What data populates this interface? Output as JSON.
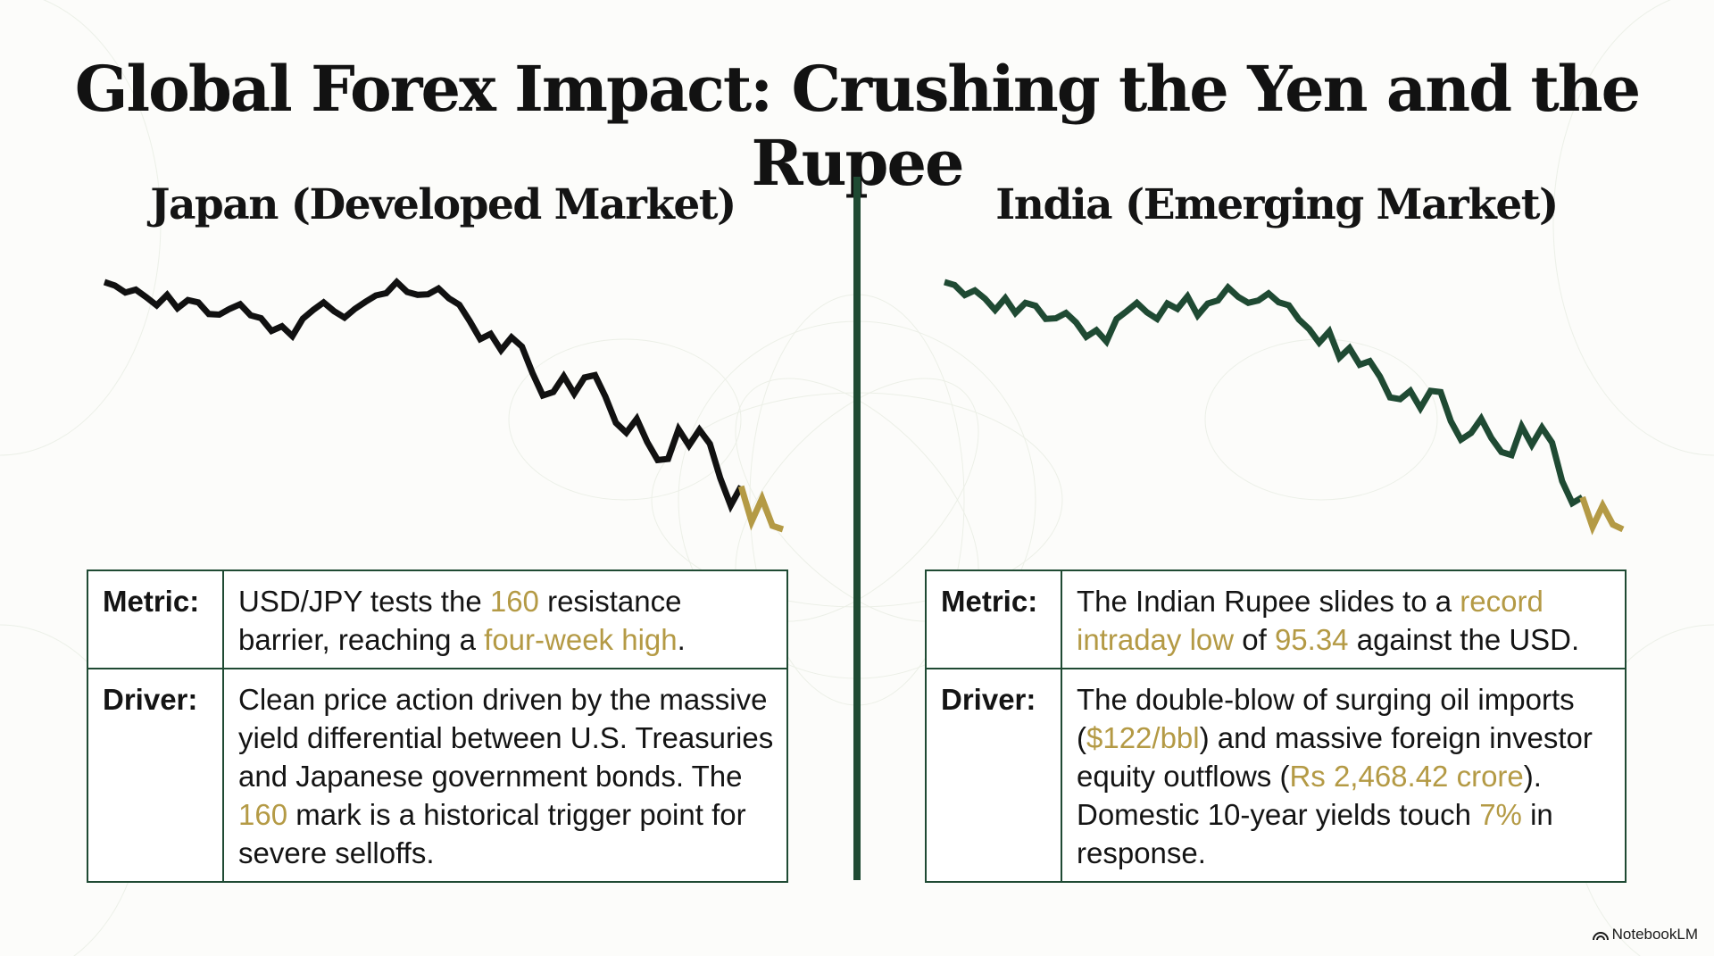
{
  "title": "Global Forex Impact: Crushing the Yen and the Rupee",
  "colors": {
    "japan_line": "#111111",
    "india_line": "#1f4a33",
    "highlight": "#b49a45",
    "accent_green": "#1f4a33"
  },
  "japan": {
    "title": "Japan (Developed Market)",
    "metric_label": "Metric:",
    "metric_parts": [
      "USD/JPY tests the ",
      "160",
      " resistance barrier, reaching a ",
      "four-week high",
      "."
    ],
    "driver_label": "Driver:",
    "driver_parts": [
      "Clean price action driven by the massive yield differential between U.S. Treasuries and Japanese government bonds. The ",
      "160",
      " mark is a historical trigger point for severe selloffs."
    ]
  },
  "india": {
    "title": "India (Emerging Market)",
    "metric_label": "Metric:",
    "metric_parts": [
      "The Indian Rupee slides to a ",
      "record intraday low",
      " of ",
      "95.34",
      " against the USD."
    ],
    "driver_label": "Driver:",
    "driver_parts": [
      "The double-blow of surging oil imports (",
      "$122/bbl",
      ") and massive foreign investor equity outflows (",
      "Rs 2,468.42 crore",
      "). Domestic 10-year yields touch ",
      "7%",
      " in response."
    ]
  },
  "chart_data": [
    {
      "type": "line",
      "title": "",
      "xlabel": "",
      "ylabel": "",
      "series": [
        {
          "values": [
            100,
            99.4,
            98.2,
            98.7,
            97.4,
            96,
            97.8,
            95.5,
            96.9,
            96.5,
            94.5,
            94.4,
            95.4,
            96.2,
            94.3,
            93.8,
            91.6,
            92.4,
            90.7,
            93.7,
            95.2,
            96.5,
            95,
            93.9,
            95.4,
            96.6,
            97.7,
            98.1,
            100,
            98.3,
            97.8,
            97.9,
            98.9,
            97.2,
            96.1,
            93.3,
            90.2,
            91.1,
            88.3,
            90.5,
            88.9,
            84.4,
            80.5,
            81.1,
            83.8,
            80.8,
            83.6,
            84,
            80.3,
            75.8,
            74.1,
            76.5,
            72.5,
            69.4,
            69.6,
            74.7,
            71.9,
            74.6,
            72.2,
            66.3,
            61.6,
            64.9,
            58.8,
            62.8,
            58.1,
            57.5
          ]
        }
      ],
      "highlight_last_points": 4
    },
    {
      "type": "line",
      "title": "",
      "xlabel": "",
      "ylabel": "",
      "series": [
        {
          "values": [
            100,
            99.5,
            97.8,
            98.6,
            97.2,
            95.3,
            97.3,
            94.8,
            96.5,
            96,
            93.8,
            93.9,
            94.8,
            93.2,
            90.8,
            91.9,
            90,
            93.8,
            95.1,
            96.5,
            94.9,
            93.8,
            96.4,
            95.5,
            97.6,
            94.4,
            96.4,
            96.9,
            99.1,
            97.5,
            96.5,
            96.9,
            98.1,
            96.6,
            96.1,
            93.7,
            92.1,
            89.8,
            91.7,
            87.3,
            88.9,
            86.1,
            86.7,
            84.1,
            80.6,
            80.3,
            81.7,
            78.8,
            81.7,
            81.5,
            76.6,
            73.5,
            74.6,
            77,
            73.8,
            71.4,
            70.9,
            75.7,
            72.6,
            75.5,
            73,
            66.5,
            62.8,
            63.8,
            58.8,
            62.4,
            59.2,
            58.4
          ]
        }
      ],
      "highlight_last_points": 4
    }
  ],
  "brand": "NotebookLM"
}
